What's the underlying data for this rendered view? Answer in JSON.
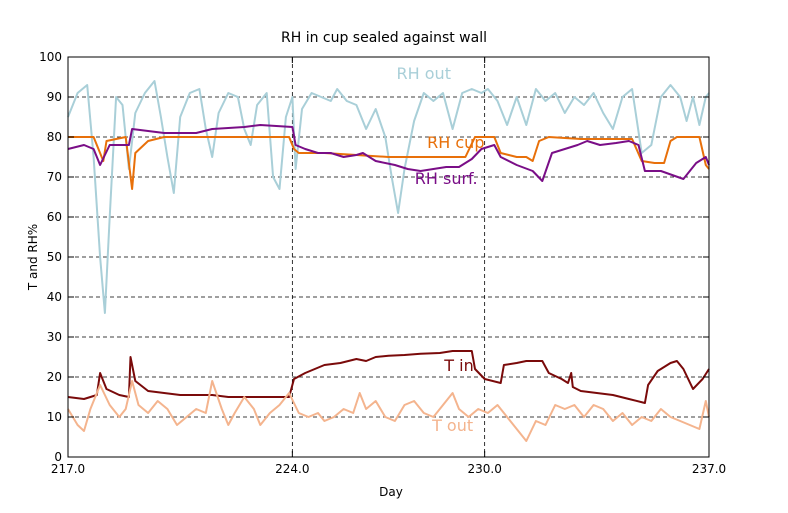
{
  "chart_data": {
    "type": "line",
    "title": "RH in cup sealed against wall",
    "xlabel": "Day",
    "ylabel": "T and RH%",
    "xlim": [
      217,
      237
    ],
    "ylim": [
      0,
      100
    ],
    "x_ticks": [
      217,
      224,
      230,
      237
    ],
    "x_tick_labels": [
      "217.0",
      "224.0",
      "230.0",
      "237.0"
    ],
    "y_ticks": [
      0,
      10,
      20,
      30,
      40,
      50,
      60,
      70,
      80,
      90,
      100
    ],
    "y_tick_labels": [
      "0",
      "10",
      "20",
      "30",
      "40",
      "50",
      "60",
      "70",
      "80",
      "90",
      "100"
    ],
    "grid": {
      "horizontal": true,
      "vertical": true,
      "style": "dashed"
    },
    "series": [
      {
        "name": "RH out",
        "color": "#a9cfd8",
        "label_at": [
          228.1,
          94.5
        ],
        "points": [
          [
            217,
            85
          ],
          [
            217.3,
            91
          ],
          [
            217.6,
            93
          ],
          [
            217.8,
            75
          ],
          [
            218,
            50
          ],
          [
            218.15,
            36
          ],
          [
            218.3,
            60
          ],
          [
            218.5,
            90
          ],
          [
            218.7,
            88
          ],
          [
            218.9,
            72
          ],
          [
            219.1,
            86
          ],
          [
            219.4,
            91
          ],
          [
            219.7,
            94
          ],
          [
            219.9,
            85
          ],
          [
            220.1,
            75
          ],
          [
            220.3,
            66
          ],
          [
            220.5,
            85
          ],
          [
            220.8,
            91
          ],
          [
            221.1,
            92
          ],
          [
            221.3,
            82
          ],
          [
            221.5,
            75
          ],
          [
            221.7,
            86
          ],
          [
            222,
            91
          ],
          [
            222.3,
            90
          ],
          [
            222.5,
            82
          ],
          [
            222.7,
            78
          ],
          [
            222.9,
            88
          ],
          [
            223.2,
            91
          ],
          [
            223.4,
            70
          ],
          [
            223.6,
            67
          ],
          [
            223.8,
            85
          ],
          [
            224,
            90
          ],
          [
            224.1,
            72
          ],
          [
            224.3,
            87
          ],
          [
            224.6,
            91
          ],
          [
            224.9,
            90
          ],
          [
            225.2,
            89
          ],
          [
            225.4,
            92
          ],
          [
            225.7,
            89
          ],
          [
            226,
            88
          ],
          [
            226.3,
            82
          ],
          [
            226.6,
            87
          ],
          [
            226.9,
            80
          ],
          [
            227.1,
            70
          ],
          [
            227.3,
            61
          ],
          [
            227.5,
            72
          ],
          [
            227.8,
            84
          ],
          [
            228.1,
            91
          ],
          [
            228.4,
            89
          ],
          [
            228.7,
            91
          ],
          [
            229,
            82
          ],
          [
            229.3,
            91
          ],
          [
            229.6,
            92
          ],
          [
            229.9,
            91
          ],
          [
            230.1,
            92
          ],
          [
            230.4,
            89
          ],
          [
            230.7,
            83
          ],
          [
            231,
            90
          ],
          [
            231.3,
            83
          ],
          [
            231.6,
            92
          ],
          [
            231.9,
            89
          ],
          [
            232.2,
            91
          ],
          [
            232.5,
            86
          ],
          [
            232.8,
            90
          ],
          [
            233.1,
            88
          ],
          [
            233.4,
            91
          ],
          [
            233.7,
            86
          ],
          [
            234,
            82
          ],
          [
            234.3,
            90
          ],
          [
            234.6,
            92
          ],
          [
            234.9,
            76
          ],
          [
            235.2,
            78
          ],
          [
            235.5,
            90
          ],
          [
            235.8,
            93
          ],
          [
            236.1,
            90
          ],
          [
            236.3,
            84
          ],
          [
            236.5,
            90
          ],
          [
            236.7,
            83
          ],
          [
            236.9,
            90
          ],
          [
            237,
            91
          ]
        ]
      },
      {
        "name": "RH cup",
        "color": "#e8700a",
        "label_at": [
          229.1,
          77.3
        ],
        "points": [
          [
            217,
            80
          ],
          [
            217.8,
            80
          ],
          [
            218.1,
            74
          ],
          [
            218.2,
            79
          ],
          [
            218.8,
            80
          ],
          [
            219,
            67
          ],
          [
            219.1,
            76
          ],
          [
            219.5,
            79
          ],
          [
            220,
            80
          ],
          [
            221,
            80
          ],
          [
            222,
            80
          ],
          [
            223,
            80
          ],
          [
            223.9,
            80
          ],
          [
            224.05,
            77
          ],
          [
            224.2,
            76
          ],
          [
            225,
            76
          ],
          [
            226,
            75.5
          ],
          [
            227,
            75
          ],
          [
            228,
            75
          ],
          [
            229,
            75
          ],
          [
            229.4,
            75
          ],
          [
            229.7,
            80
          ],
          [
            230.3,
            80
          ],
          [
            230.5,
            76
          ],
          [
            231,
            75
          ],
          [
            231.3,
            75
          ],
          [
            231.5,
            74
          ],
          [
            231.7,
            79
          ],
          [
            232,
            80
          ],
          [
            233,
            79.5
          ],
          [
            234,
            79.5
          ],
          [
            234.6,
            79.5
          ],
          [
            234.9,
            74
          ],
          [
            235.3,
            73.5
          ],
          [
            235.6,
            73.5
          ],
          [
            235.8,
            79
          ],
          [
            236,
            80
          ],
          [
            236.7,
            80
          ],
          [
            236.9,
            73
          ],
          [
            237,
            72
          ]
        ]
      },
      {
        "name": "RH surf.",
        "color": "#7a0e87",
        "label_at": [
          228.8,
          68.3
        ],
        "points": [
          [
            217,
            77
          ],
          [
            217.5,
            78
          ],
          [
            217.8,
            77
          ],
          [
            218,
            73
          ],
          [
            218.3,
            78
          ],
          [
            218.7,
            78
          ],
          [
            218.9,
            78
          ],
          [
            219,
            82
          ],
          [
            219.5,
            81.5
          ],
          [
            220,
            81
          ],
          [
            221,
            81
          ],
          [
            221.5,
            82
          ],
          [
            222.5,
            82.5
          ],
          [
            223,
            83
          ],
          [
            224,
            82.5
          ],
          [
            224.1,
            78
          ],
          [
            224.4,
            77
          ],
          [
            224.8,
            76
          ],
          [
            225.2,
            76
          ],
          [
            225.6,
            75
          ],
          [
            226,
            75.5
          ],
          [
            226.2,
            76
          ],
          [
            226.6,
            74
          ],
          [
            227.2,
            73
          ],
          [
            227.6,
            72
          ],
          [
            228,
            71.5
          ],
          [
            228.8,
            72.5
          ],
          [
            229.2,
            72.5
          ],
          [
            229.6,
            74.5
          ],
          [
            229.9,
            77
          ],
          [
            230.3,
            78
          ],
          [
            230.5,
            75
          ],
          [
            231,
            73
          ],
          [
            231.5,
            71.5
          ],
          [
            231.8,
            69
          ],
          [
            232.1,
            76
          ],
          [
            232.5,
            77
          ],
          [
            232.9,
            78
          ],
          [
            233.2,
            79
          ],
          [
            233.6,
            78
          ],
          [
            234.1,
            78.5
          ],
          [
            234.5,
            79
          ],
          [
            234.8,
            78
          ],
          [
            235,
            71.5
          ],
          [
            235.5,
            71.5
          ],
          [
            236.2,
            69.5
          ],
          [
            236.6,
            73.5
          ],
          [
            236.9,
            75
          ],
          [
            237,
            73
          ]
        ]
      },
      {
        "name": "T in",
        "color": "#7a0a0a",
        "label_at": [
          229.2,
          21.5
        ],
        "points": [
          [
            217,
            15
          ],
          [
            217.5,
            14.5
          ],
          [
            217.9,
            15.5
          ],
          [
            218,
            21
          ],
          [
            218.2,
            17
          ],
          [
            218.6,
            15.5
          ],
          [
            218.9,
            15
          ],
          [
            218.95,
            25
          ],
          [
            219.1,
            19
          ],
          [
            219.5,
            16.5
          ],
          [
            220,
            16
          ],
          [
            220.5,
            15.5
          ],
          [
            221,
            15.5
          ],
          [
            221.5,
            15.5
          ],
          [
            222,
            15
          ],
          [
            223,
            15
          ],
          [
            223.9,
            15
          ],
          [
            224.05,
            19.5
          ],
          [
            224.4,
            21
          ],
          [
            225,
            23
          ],
          [
            225.5,
            23.5
          ],
          [
            226,
            24.5
          ],
          [
            226.3,
            24
          ],
          [
            226.6,
            25
          ],
          [
            227,
            25.3
          ],
          [
            227.5,
            25.5
          ],
          [
            228,
            25.8
          ],
          [
            228.6,
            26
          ],
          [
            229,
            26.5
          ],
          [
            229.6,
            26.5
          ],
          [
            229.7,
            22
          ],
          [
            230,
            19.5
          ],
          [
            230.5,
            18.5
          ],
          [
            230.6,
            23
          ],
          [
            231,
            23.5
          ],
          [
            231.3,
            24
          ],
          [
            231.8,
            24
          ],
          [
            232,
            21
          ],
          [
            232.4,
            19.5
          ],
          [
            232.6,
            18.5
          ],
          [
            232.7,
            21
          ],
          [
            232.75,
            17.5
          ],
          [
            233,
            16.5
          ],
          [
            233.5,
            16
          ],
          [
            234,
            15.5
          ],
          [
            234.5,
            14.5
          ],
          [
            235,
            13.5
          ],
          [
            235.1,
            18
          ],
          [
            235.4,
            21.5
          ],
          [
            235.8,
            23.5
          ],
          [
            236,
            24
          ],
          [
            236.2,
            22
          ],
          [
            236.5,
            17
          ],
          [
            236.8,
            19.5
          ],
          [
            237,
            22
          ]
        ]
      },
      {
        "name": "T out",
        "color": "#f4b48e",
        "label_at": [
          229.0,
          6.5
        ],
        "points": [
          [
            217,
            12
          ],
          [
            217.3,
            8
          ],
          [
            217.5,
            6.5
          ],
          [
            217.7,
            12
          ],
          [
            218,
            18
          ],
          [
            218.3,
            13
          ],
          [
            218.6,
            10
          ],
          [
            218.8,
            12
          ],
          [
            219,
            19
          ],
          [
            219.2,
            13
          ],
          [
            219.5,
            11
          ],
          [
            219.8,
            14
          ],
          [
            220.1,
            12
          ],
          [
            220.4,
            8
          ],
          [
            220.7,
            10
          ],
          [
            221,
            12
          ],
          [
            221.3,
            11
          ],
          [
            221.5,
            19
          ],
          [
            221.8,
            12
          ],
          [
            222,
            8
          ],
          [
            222.2,
            11
          ],
          [
            222.5,
            15
          ],
          [
            222.8,
            12
          ],
          [
            223,
            8
          ],
          [
            223.3,
            11
          ],
          [
            223.6,
            13
          ],
          [
            223.9,
            16
          ],
          [
            224.2,
            11
          ],
          [
            224.5,
            10
          ],
          [
            224.8,
            11
          ],
          [
            225,
            9
          ],
          [
            225.3,
            10
          ],
          [
            225.6,
            12
          ],
          [
            225.9,
            11
          ],
          [
            226.1,
            16
          ],
          [
            226.3,
            12
          ],
          [
            226.6,
            14
          ],
          [
            226.9,
            10
          ],
          [
            227.2,
            9
          ],
          [
            227.5,
            13
          ],
          [
            227.8,
            14
          ],
          [
            228.1,
            11
          ],
          [
            228.4,
            10
          ],
          [
            228.7,
            13
          ],
          [
            229,
            16
          ],
          [
            229.2,
            12
          ],
          [
            229.5,
            10
          ],
          [
            229.8,
            12
          ],
          [
            230.1,
            11
          ],
          [
            230.4,
            13
          ],
          [
            230.7,
            10
          ],
          [
            231,
            7
          ],
          [
            231.3,
            4
          ],
          [
            231.6,
            9
          ],
          [
            231.9,
            8
          ],
          [
            232.2,
            13
          ],
          [
            232.5,
            12
          ],
          [
            232.8,
            13
          ],
          [
            233.1,
            10
          ],
          [
            233.4,
            13
          ],
          [
            233.7,
            12
          ],
          [
            234,
            9
          ],
          [
            234.3,
            11
          ],
          [
            234.6,
            8
          ],
          [
            234.9,
            10
          ],
          [
            235.2,
            9
          ],
          [
            235.5,
            12
          ],
          [
            235.8,
            10
          ],
          [
            236.1,
            9
          ],
          [
            236.4,
            8
          ],
          [
            236.7,
            7
          ],
          [
            236.9,
            14
          ],
          [
            237,
            10
          ]
        ]
      }
    ]
  }
}
